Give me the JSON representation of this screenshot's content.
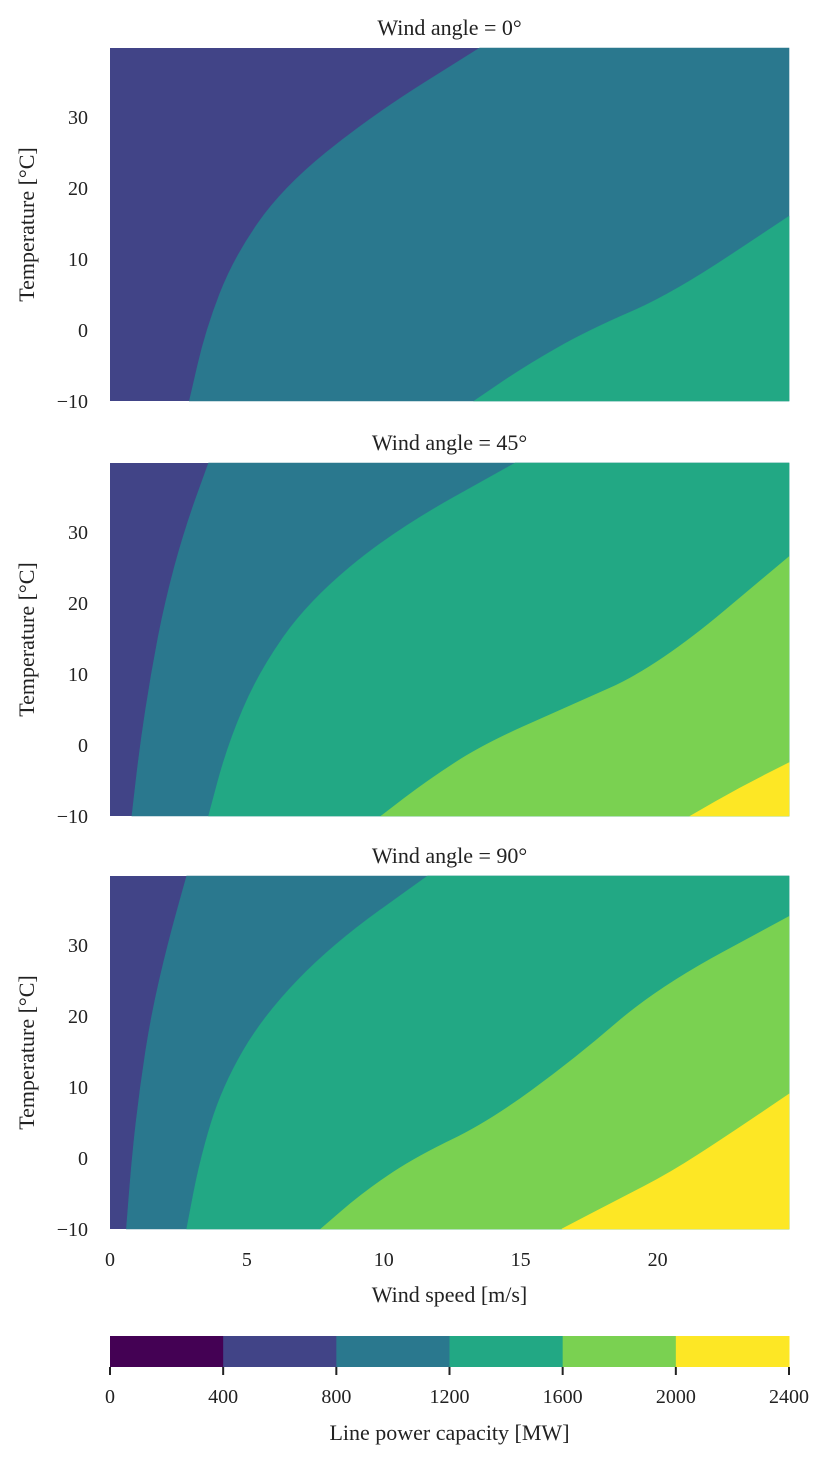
{
  "chart_data": {
    "type": "contourf",
    "colorbar": {
      "label": "Line power capacity [MW]",
      "levels": [
        0,
        400,
        800,
        1200,
        1600,
        2000,
        2400
      ],
      "ticks": [
        "0",
        "400",
        "800",
        "1200",
        "1600",
        "2000",
        "2400"
      ],
      "colors": [
        "#440154",
        "#414487",
        "#2a788e",
        "#22a884",
        "#7ad151",
        "#fde725"
      ]
    },
    "xlabel": "Wind speed [m/s]",
    "x_ticks": [
      "0",
      "5",
      "10",
      "15",
      "20"
    ],
    "x_tick_values": [
      0,
      5,
      10,
      15,
      20
    ],
    "xlim": [
      0,
      24.8
    ],
    "ylim": [
      -10,
      39.7
    ],
    "y_ticks": [
      "−10",
      "0",
      "10",
      "20",
      "30"
    ],
    "y_tick_values": [
      -10,
      0,
      10,
      20,
      30
    ],
    "panels": [
      {
        "title": "Wind angle = 0°",
        "ylabel": "Temperature [°C]",
        "contours": [
          {
            "level": 800,
            "points": [
              [
                2.9,
                -10
              ],
              [
                3.5,
                0
              ],
              [
                4.5,
                10
              ],
              [
                6.3,
                20
              ],
              [
                9.5,
                30
              ],
              [
                13.5,
                39.7
              ]
            ]
          },
          {
            "level": 1200,
            "points": [
              [
                13.3,
                -10
              ],
              [
                15.2,
                -5
              ],
              [
                17.5,
                0
              ],
              [
                20.5,
                5
              ],
              [
                24.8,
                16
              ]
            ]
          }
        ]
      },
      {
        "title": "Wind angle = 45°",
        "ylabel": "Temperature [°C]",
        "contours": [
          {
            "level": 800,
            "points": [
              [
                0.8,
                -10
              ],
              [
                1.1,
                0
              ],
              [
                1.5,
                10
              ],
              [
                2.0,
                20
              ],
              [
                2.7,
                30
              ],
              [
                3.6,
                39.7
              ]
            ]
          },
          {
            "level": 1200,
            "points": [
              [
                3.6,
                -10
              ],
              [
                4.3,
                0
              ],
              [
                5.4,
                10
              ],
              [
                7.2,
                20
              ],
              [
                10.3,
                30
              ],
              [
                14.8,
                39.7
              ]
            ]
          },
          {
            "level": 1600,
            "points": [
              [
                9.9,
                -10
              ],
              [
                11.6,
                -5
              ],
              [
                13.6,
                0
              ],
              [
                16.5,
                5
              ],
              [
                20.0,
                11
              ],
              [
                24.8,
                26.5
              ]
            ]
          },
          {
            "level": 2000,
            "points": [
              [
                21.2,
                -10
              ],
              [
                23.0,
                -6
              ],
              [
                24.8,
                -2.5
              ]
            ]
          }
        ]
      },
      {
        "title": "Wind angle = 90°",
        "ylabel": "Temperature [°C]",
        "contours": [
          {
            "level": 800,
            "points": [
              [
                0.6,
                -10
              ],
              [
                0.8,
                0
              ],
              [
                1.1,
                10
              ],
              [
                1.5,
                20
              ],
              [
                2.1,
                30
              ],
              [
                2.8,
                39.7
              ]
            ]
          },
          {
            "level": 1200,
            "points": [
              [
                2.8,
                -10
              ],
              [
                3.3,
                0
              ],
              [
                4.1,
                10
              ],
              [
                5.6,
                20
              ],
              [
                8.1,
                30
              ],
              [
                11.6,
                39.7
              ]
            ]
          },
          {
            "level": 1600,
            "points": [
              [
                7.7,
                -10
              ],
              [
                9.2,
                -5
              ],
              [
                11.1,
                0
              ],
              [
                13.8,
                5
              ],
              [
                17.0,
                14
              ],
              [
                20.0,
                24
              ],
              [
                24.8,
                34
              ]
            ]
          },
          {
            "level": 2000,
            "points": [
              [
                16.5,
                -10
              ],
              [
                18.5,
                -6
              ],
              [
                20.5,
                -2
              ],
              [
                22.5,
                3
              ],
              [
                24.8,
                9
              ]
            ]
          }
        ]
      }
    ]
  }
}
